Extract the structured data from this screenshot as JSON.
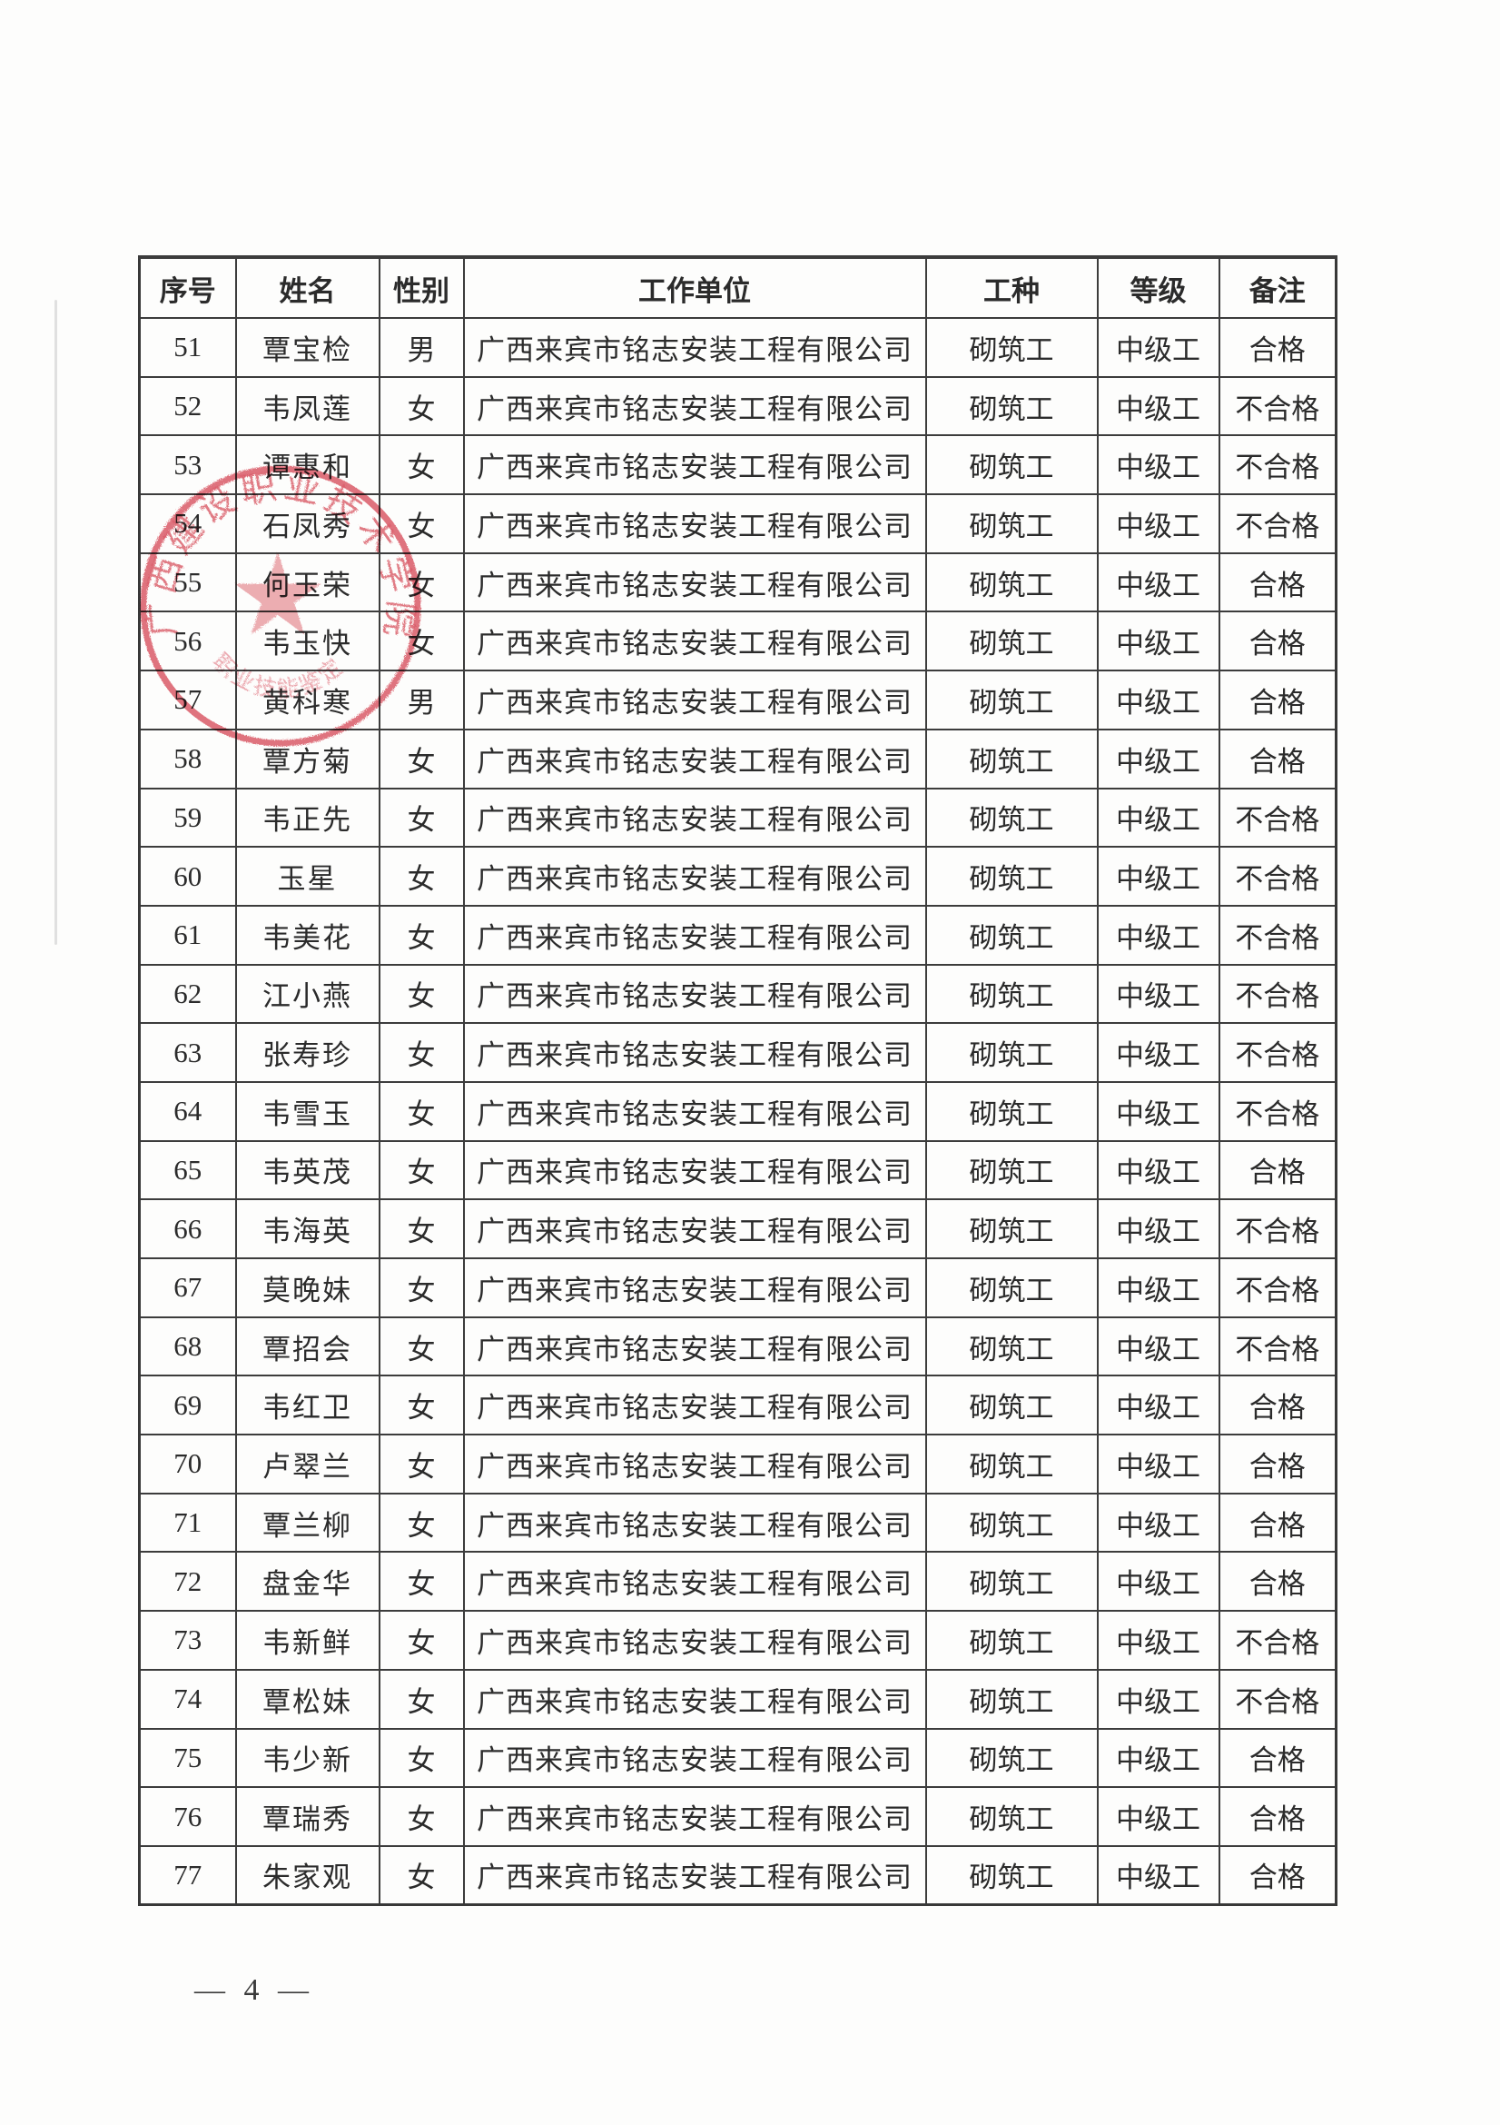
{
  "page": {
    "page_number": "— 4 —"
  },
  "colors": {
    "paper": "#fdfdfc",
    "table_border": "#3c3c3c",
    "text": "#2b2b2b",
    "stamp_red": "#d84a58"
  },
  "table": {
    "headers": [
      "序号",
      "姓名",
      "性别",
      "工作单位",
      "工种",
      "等级",
      "备注"
    ],
    "rows": [
      [
        "51",
        "覃宝检",
        "男",
        "广西来宾市铭志安装工程有限公司",
        "砌筑工",
        "中级工",
        "合格"
      ],
      [
        "52",
        "韦凤莲",
        "女",
        "广西来宾市铭志安装工程有限公司",
        "砌筑工",
        "中级工",
        "不合格"
      ],
      [
        "53",
        "谭惠和",
        "女",
        "广西来宾市铭志安装工程有限公司",
        "砌筑工",
        "中级工",
        "不合格"
      ],
      [
        "54",
        "石凤秀",
        "女",
        "广西来宾市铭志安装工程有限公司",
        "砌筑工",
        "中级工",
        "不合格"
      ],
      [
        "55",
        "何玉荣",
        "女",
        "广西来宾市铭志安装工程有限公司",
        "砌筑工",
        "中级工",
        "合格"
      ],
      [
        "56",
        "韦玉快",
        "女",
        "广西来宾市铭志安装工程有限公司",
        "砌筑工",
        "中级工",
        "合格"
      ],
      [
        "57",
        "黄科寒",
        "男",
        "广西来宾市铭志安装工程有限公司",
        "砌筑工",
        "中级工",
        "合格"
      ],
      [
        "58",
        "覃方菊",
        "女",
        "广西来宾市铭志安装工程有限公司",
        "砌筑工",
        "中级工",
        "合格"
      ],
      [
        "59",
        "韦正先",
        "女",
        "广西来宾市铭志安装工程有限公司",
        "砌筑工",
        "中级工",
        "不合格"
      ],
      [
        "60",
        "玉星",
        "女",
        "广西来宾市铭志安装工程有限公司",
        "砌筑工",
        "中级工",
        "不合格"
      ],
      [
        "61",
        "韦美花",
        "女",
        "广西来宾市铭志安装工程有限公司",
        "砌筑工",
        "中级工",
        "不合格"
      ],
      [
        "62",
        "江小燕",
        "女",
        "广西来宾市铭志安装工程有限公司",
        "砌筑工",
        "中级工",
        "不合格"
      ],
      [
        "63",
        "张寿珍",
        "女",
        "广西来宾市铭志安装工程有限公司",
        "砌筑工",
        "中级工",
        "不合格"
      ],
      [
        "64",
        "韦雪玉",
        "女",
        "广西来宾市铭志安装工程有限公司",
        "砌筑工",
        "中级工",
        "不合格"
      ],
      [
        "65",
        "韦英茂",
        "女",
        "广西来宾市铭志安装工程有限公司",
        "砌筑工",
        "中级工",
        "合格"
      ],
      [
        "66",
        "韦海英",
        "女",
        "广西来宾市铭志安装工程有限公司",
        "砌筑工",
        "中级工",
        "不合格"
      ],
      [
        "67",
        "莫晚妹",
        "女",
        "广西来宾市铭志安装工程有限公司",
        "砌筑工",
        "中级工",
        "不合格"
      ],
      [
        "68",
        "覃招会",
        "女",
        "广西来宾市铭志安装工程有限公司",
        "砌筑工",
        "中级工",
        "不合格"
      ],
      [
        "69",
        "韦红卫",
        "女",
        "广西来宾市铭志安装工程有限公司",
        "砌筑工",
        "中级工",
        "合格"
      ],
      [
        "70",
        "卢翠兰",
        "女",
        "广西来宾市铭志安装工程有限公司",
        "砌筑工",
        "中级工",
        "合格"
      ],
      [
        "71",
        "覃兰柳",
        "女",
        "广西来宾市铭志安装工程有限公司",
        "砌筑工",
        "中级工",
        "合格"
      ],
      [
        "72",
        "盘金华",
        "女",
        "广西来宾市铭志安装工程有限公司",
        "砌筑工",
        "中级工",
        "合格"
      ],
      [
        "73",
        "韦新鲜",
        "女",
        "广西来宾市铭志安装工程有限公司",
        "砌筑工",
        "中级工",
        "不合格"
      ],
      [
        "74",
        "覃松妹",
        "女",
        "广西来宾市铭志安装工程有限公司",
        "砌筑工",
        "中级工",
        "不合格"
      ],
      [
        "75",
        "韦少新",
        "女",
        "广西来宾市铭志安装工程有限公司",
        "砌筑工",
        "中级工",
        "合格"
      ],
      [
        "76",
        "覃瑞秀",
        "女",
        "广西来宾市铭志安装工程有限公司",
        "砌筑工",
        "中级工",
        "合格"
      ],
      [
        "77",
        "朱家观",
        "女",
        "广西来宾市铭志安装工程有限公司",
        "砌筑工",
        "中级工",
        "合格"
      ]
    ]
  },
  "stamp": {
    "ring_text": "广西建设职业技术学院",
    "inner_text": "职业技能鉴定",
    "center_symbol": "star"
  }
}
